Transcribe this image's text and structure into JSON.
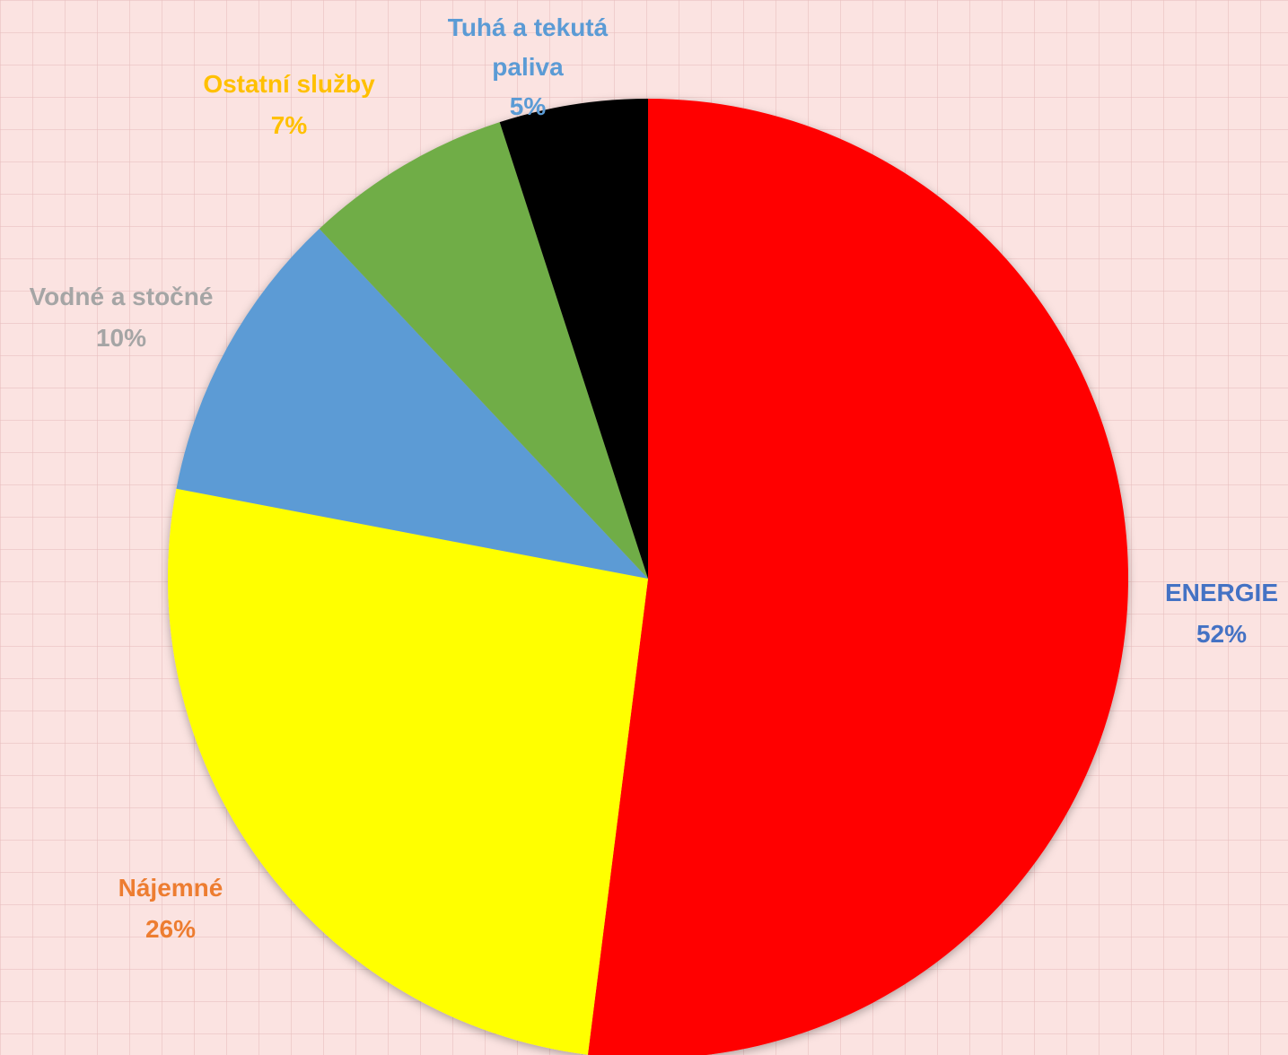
{
  "chart_data": {
    "type": "pie",
    "slices": [
      {
        "label": "ENERGIE",
        "percent_label": "52%",
        "value": 52,
        "color": "#ff0000",
        "label_color": "#4472c4"
      },
      {
        "label": "Nájemné",
        "percent_label": "26%",
        "value": 26,
        "color": "#ffff00",
        "label_color": "#ed7d31"
      },
      {
        "label": "Vodné a stočné",
        "percent_label": "10%",
        "value": 10,
        "color": "#5b9bd5",
        "label_color": "#a5a5a5"
      },
      {
        "label": "Ostatní služby",
        "percent_label": "7%",
        "value": 7,
        "color": "#70ad47",
        "label_color": "#ffc000"
      },
      {
        "label": "Tuhá a tekutá paliva",
        "percent_label": "5%",
        "value": 5,
        "color": "#000000",
        "label_color": "#5b9bd5"
      }
    ],
    "start_angle": "12 o'clock",
    "direction": "clockwise",
    "legend": "none",
    "data_labels": "outside"
  }
}
